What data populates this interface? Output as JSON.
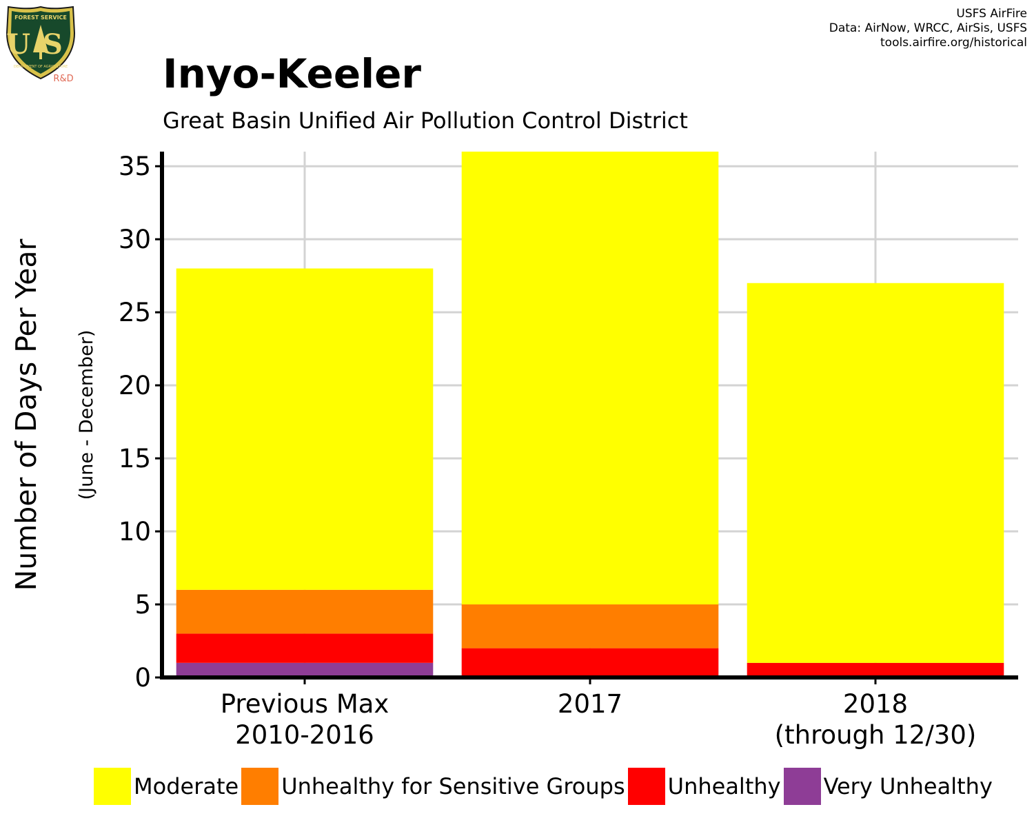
{
  "logo": {
    "top_text": "FOREST SERVICE",
    "letters": "US",
    "bottom_text": "DEPARTMENT OF AGRICULTURE",
    "suffix": "R&D"
  },
  "credits": {
    "line1": "USFS AirFire",
    "line2": "Data: AirNow, WRCC, AirSis, USFS",
    "line3": "tools.airfire.org/historical"
  },
  "chart_data": {
    "type": "bar",
    "stacked": true,
    "title": "Inyo-Keeler",
    "subtitle": "Great Basin Unified Air Pollution Control District",
    "ylabel": "Number of Days Per Year",
    "ylabel_sub": "(June - December)",
    "xlabel": "",
    "categories": [
      [
        "Previous Max",
        "2010-2016"
      ],
      [
        "2017"
      ],
      [
        "2018",
        "(through 12/30)"
      ]
    ],
    "series": [
      {
        "name": "Very Unhealthy",
        "color": "#8E3D96",
        "values": [
          1,
          0,
          0
        ]
      },
      {
        "name": "Unhealthy",
        "color": "#FF0000",
        "values": [
          2,
          2,
          1
        ]
      },
      {
        "name": "Unhealthy for Sensitive Groups",
        "color": "#FF7E00",
        "values": [
          3,
          3,
          0
        ]
      },
      {
        "name": "Moderate",
        "color": "#FFFF00",
        "values": [
          22,
          31,
          26
        ]
      }
    ],
    "legend_order": [
      "Moderate",
      "Unhealthy for Sensitive Groups",
      "Unhealthy",
      "Very Unhealthy"
    ],
    "ylim": [
      0,
      36
    ],
    "yticks": [
      0,
      5,
      10,
      15,
      20,
      25,
      30,
      35
    ],
    "grid": true,
    "legend_position": "bottom"
  }
}
